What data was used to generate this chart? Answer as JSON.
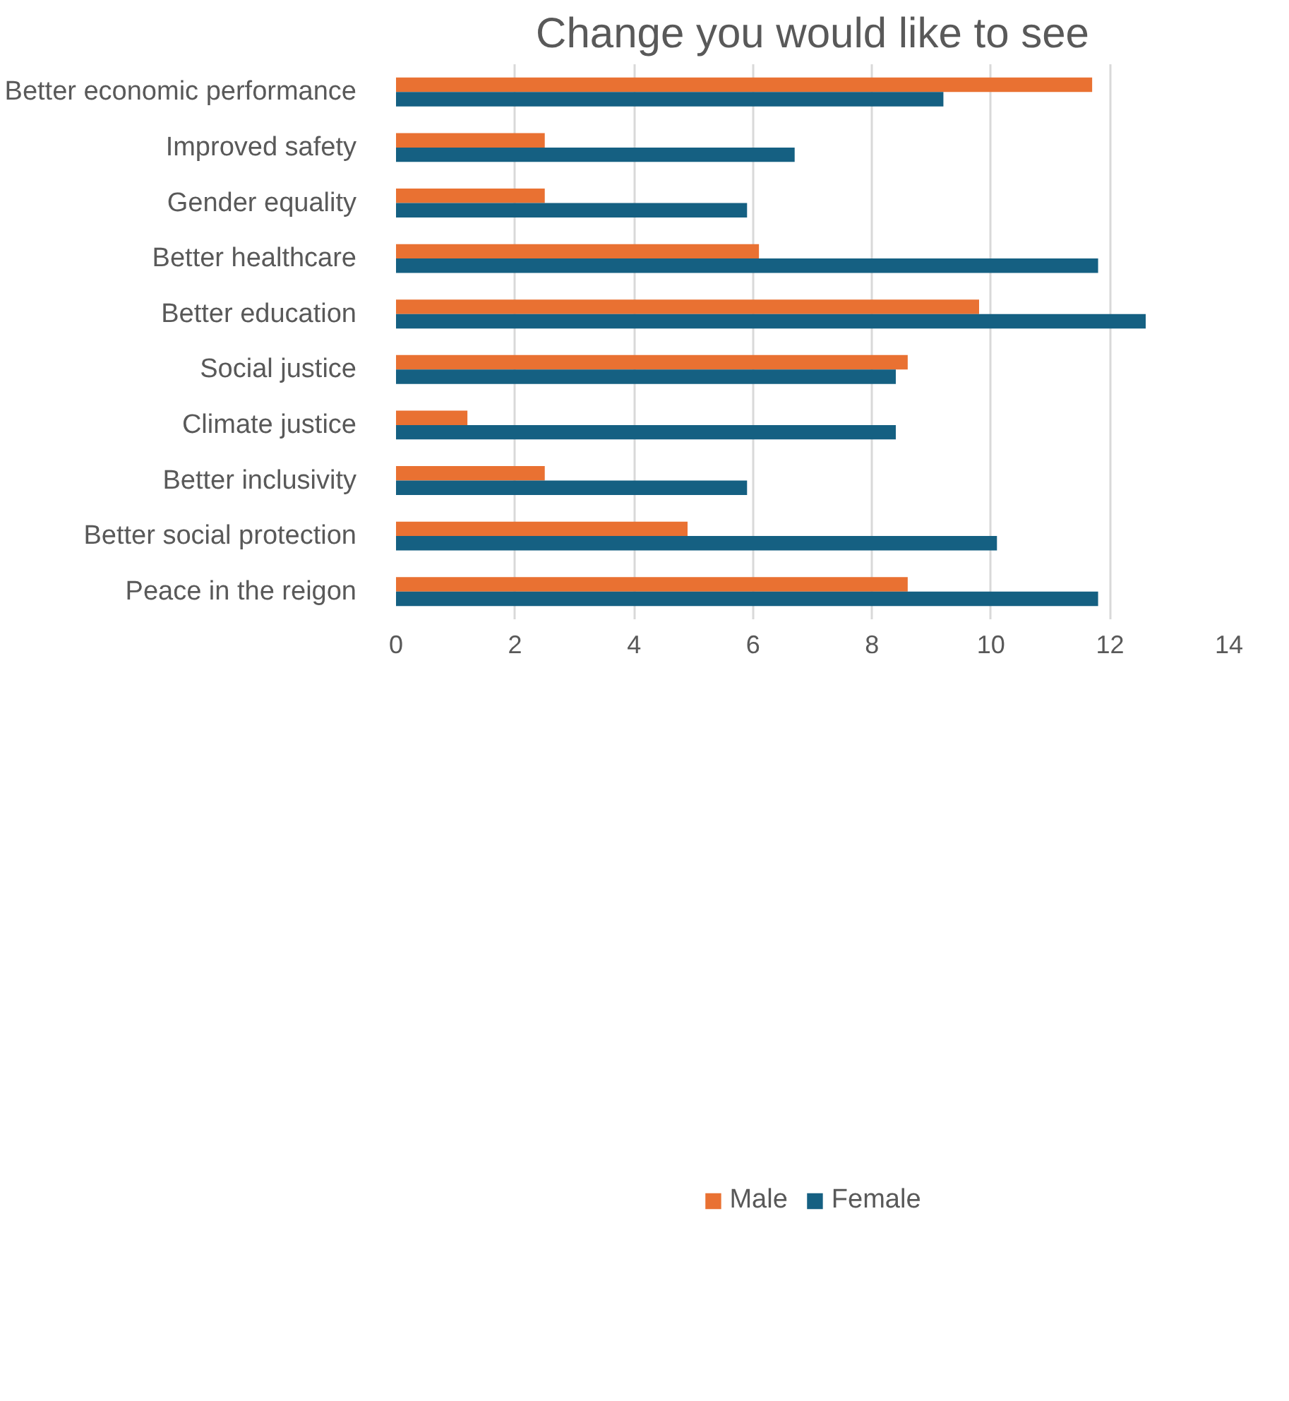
{
  "chart_data": {
    "type": "bar",
    "orientation": "horizontal",
    "title": "Change you would like to see",
    "categories": [
      "Better economic performance",
      "Improved safety",
      "Gender equality",
      "Better healthcare",
      "Better education",
      "Social justice",
      "Climate justice",
      "Better inclusivity",
      "Better social protection",
      "Peace in the reigon"
    ],
    "series": [
      {
        "name": "Male",
        "color": "#e97132",
        "values": [
          11.7,
          2.5,
          2.5,
          6.1,
          9.8,
          8.6,
          1.2,
          2.5,
          4.9,
          8.6
        ]
      },
      {
        "name": "Female",
        "color": "#156082",
        "values": [
          9.2,
          6.7,
          5.9,
          11.8,
          12.6,
          8.4,
          8.4,
          5.9,
          10.1,
          11.8
        ]
      }
    ],
    "xlim": [
      0,
      14
    ],
    "xticks": [
      0,
      2,
      4,
      6,
      8,
      10,
      12,
      14
    ],
    "grid": "x",
    "legend": "bottom"
  }
}
